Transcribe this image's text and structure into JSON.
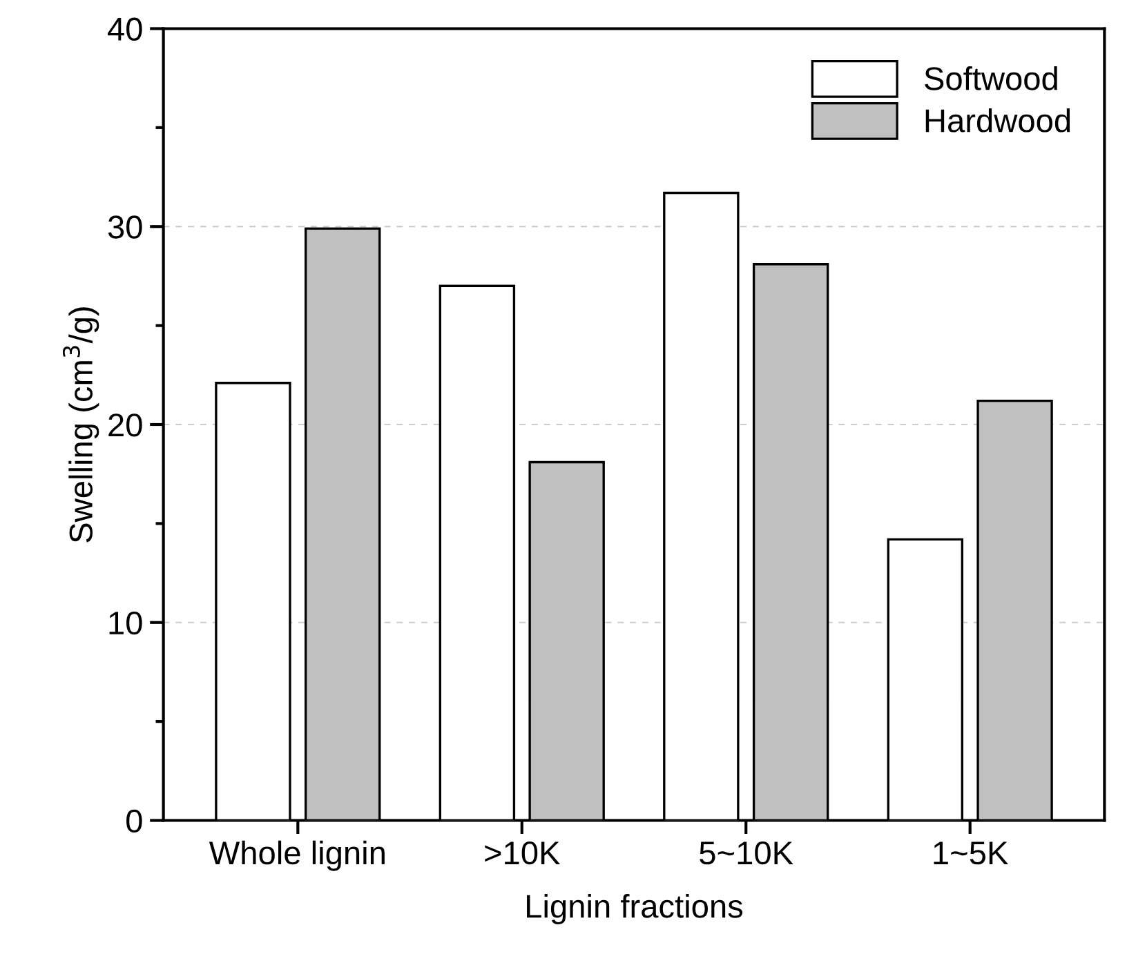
{
  "chart_data": {
    "type": "bar",
    "xlabel": "Lignin fractions",
    "ylabel": "Swelling (cm$^{3}$/g)",
    "categories": [
      "Whole lignin",
      ">10K",
      "5~10K",
      "1~5K"
    ],
    "series": [
      {
        "name": "Softwood",
        "color": "#ffffff",
        "values": [
          22.1,
          27.0,
          31.7,
          14.2
        ]
      },
      {
        "name": "Hardwood",
        "color": "#c0c0c0",
        "values": [
          29.9,
          18.1,
          28.1,
          21.2
        ]
      }
    ],
    "ylim": [
      0,
      40
    ],
    "yticks": [
      0,
      10,
      20,
      30,
      40
    ],
    "grid": "y",
    "legend": "top right"
  }
}
